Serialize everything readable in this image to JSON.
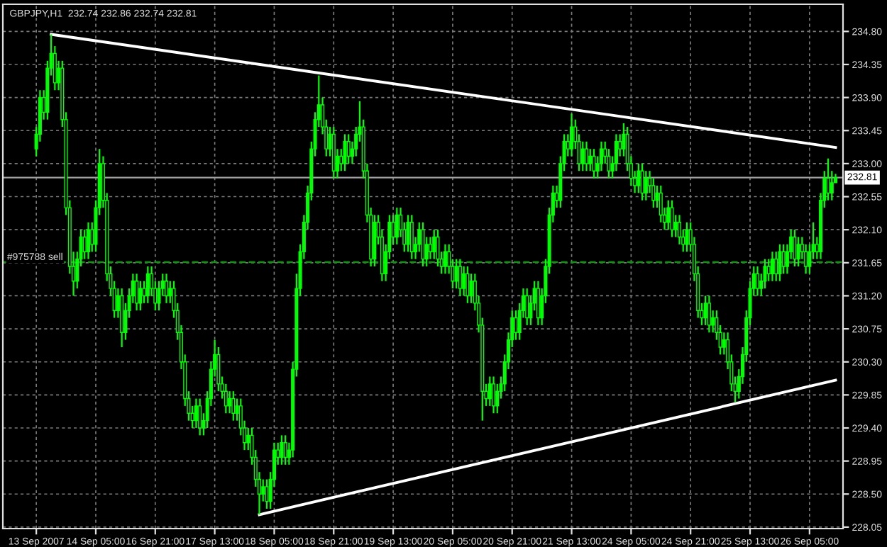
{
  "chart_data": {
    "type": "candlestick",
    "title": "GBPJPY,H1  232.74 232.86 232.74 232.81",
    "categories": [
      "13 Sep 2007",
      null,
      null,
      null,
      null,
      null,
      null,
      null,
      null,
      null,
      null,
      null,
      null,
      null,
      null,
      null,
      "14 Sep 05:00",
      null,
      null,
      null,
      null,
      null,
      null,
      null,
      null,
      null,
      null,
      null,
      null,
      null,
      null,
      null,
      "16 Sep 21:00",
      null,
      null,
      null,
      null,
      null,
      null,
      null,
      null,
      null,
      null,
      null,
      null,
      null,
      null,
      null,
      "17 Sep 13:00",
      null,
      null,
      null,
      null,
      null,
      null,
      null,
      null,
      null,
      null,
      null,
      null,
      null,
      null,
      null,
      "18 Sep 05:00",
      null,
      null,
      null,
      null,
      null,
      null,
      null,
      null,
      null,
      null,
      null,
      null,
      null,
      null,
      null,
      "18 Sep 21:00",
      null,
      null,
      null,
      null,
      null,
      null,
      null,
      null,
      null,
      null,
      null,
      null,
      null,
      null,
      null,
      "19 Sep 13:00",
      null,
      null,
      null,
      null,
      null,
      null,
      null,
      null,
      null,
      null,
      null,
      null,
      null,
      null,
      null,
      "20 Sep 05:00",
      null,
      null,
      null,
      null,
      null,
      null,
      null,
      null,
      null,
      null,
      null,
      null,
      null,
      null,
      null,
      "20 Sep 21:00",
      null,
      null,
      null,
      null,
      null,
      null,
      null,
      null,
      null,
      null,
      null,
      null,
      null,
      null,
      null,
      "21 Sep 13:00",
      null,
      null,
      null,
      null,
      null,
      null,
      null,
      null,
      null,
      null,
      null,
      null,
      null,
      null,
      null,
      "24 Sep 05:00",
      null,
      null,
      null,
      null,
      null,
      null,
      null,
      null,
      null,
      null,
      null,
      null,
      null,
      null,
      null,
      "24 Sep 21:00",
      null,
      null,
      null,
      null,
      null,
      null,
      null,
      null,
      null,
      null,
      null,
      null,
      null,
      null,
      null,
      "25 Sep 13:00",
      null,
      null,
      null,
      null,
      null,
      null,
      null,
      null,
      null,
      null,
      null,
      null,
      null,
      null,
      null,
      "26 Sep 05:00",
      null,
      null,
      null,
      null,
      null,
      null,
      null
    ],
    "color": "#00ff00",
    "ohlc": [
      [
        233.2,
        233.5,
        233.1,
        233.4
      ],
      [
        233.4,
        234.0,
        233.3,
        233.9
      ],
      [
        233.9,
        234.0,
        233.6,
        233.7
      ],
      [
        233.7,
        234.4,
        233.6,
        234.3
      ],
      [
        234.3,
        234.76,
        234.2,
        234.5
      ],
      [
        234.5,
        234.6,
        234.0,
        234.1
      ],
      [
        234.1,
        234.4,
        234.0,
        234.3
      ],
      [
        234.3,
        234.4,
        233.5,
        233.6
      ],
      [
        233.6,
        233.7,
        232.3,
        232.4
      ],
      [
        232.4,
        232.5,
        231.5,
        231.6
      ],
      [
        231.6,
        231.8,
        231.2,
        231.4
      ],
      [
        231.4,
        231.8,
        231.3,
        231.7
      ],
      [
        231.7,
        232.1,
        231.6,
        232.0
      ],
      [
        232.0,
        232.1,
        231.7,
        231.8
      ],
      [
        231.8,
        232.2,
        231.7,
        232.1
      ],
      [
        232.1,
        232.2,
        231.8,
        231.9
      ],
      [
        231.9,
        232.5,
        231.8,
        232.4
      ],
      [
        232.4,
        233.2,
        232.3,
        233.0
      ],
      [
        233.0,
        233.1,
        232.4,
        232.5
      ],
      [
        232.5,
        232.6,
        231.4,
        231.5
      ],
      [
        231.5,
        231.6,
        231.2,
        231.3
      ],
      [
        231.3,
        231.4,
        230.9,
        231.0
      ],
      [
        231.0,
        231.3,
        230.9,
        231.2
      ],
      [
        231.2,
        231.3,
        230.5,
        230.7
      ],
      [
        230.7,
        231.1,
        230.6,
        231.0
      ],
      [
        231.0,
        231.3,
        230.9,
        231.2
      ],
      [
        231.2,
        231.5,
        231.1,
        231.4
      ],
      [
        231.4,
        231.5,
        231.0,
        231.1
      ],
      [
        231.1,
        231.4,
        231.0,
        231.3
      ],
      [
        231.3,
        231.4,
        231.1,
        231.2
      ],
      [
        231.2,
        231.6,
        231.1,
        231.5
      ],
      [
        231.5,
        231.6,
        231.2,
        231.3
      ],
      [
        231.3,
        231.4,
        231.0,
        231.1
      ],
      [
        231.1,
        231.4,
        231.0,
        231.3
      ],
      [
        231.3,
        231.5,
        231.2,
        231.4
      ],
      [
        231.4,
        231.5,
        231.1,
        231.2
      ],
      [
        231.2,
        231.4,
        231.1,
        231.3
      ],
      [
        231.3,
        231.4,
        230.9,
        231.0
      ],
      [
        231.0,
        231.1,
        230.6,
        230.7
      ],
      [
        230.7,
        230.8,
        230.2,
        230.3
      ],
      [
        230.3,
        230.4,
        229.7,
        229.8
      ],
      [
        229.8,
        229.9,
        229.5,
        229.6
      ],
      [
        229.6,
        229.7,
        229.4,
        229.5
      ],
      [
        229.5,
        229.8,
        229.4,
        229.7
      ],
      [
        229.7,
        229.8,
        229.3,
        229.4
      ],
      [
        229.4,
        229.6,
        229.3,
        229.5
      ],
      [
        229.5,
        229.9,
        229.4,
        229.8
      ],
      [
        229.8,
        230.3,
        229.7,
        230.2
      ],
      [
        230.2,
        230.6,
        230.1,
        230.4
      ],
      [
        230.4,
        230.5,
        229.9,
        230.0
      ],
      [
        230.0,
        230.1,
        229.8,
        229.9
      ],
      [
        229.9,
        230.0,
        229.6,
        229.7
      ],
      [
        229.7,
        229.9,
        229.6,
        229.8
      ],
      [
        229.8,
        229.9,
        229.5,
        229.6
      ],
      [
        229.6,
        229.8,
        229.5,
        229.7
      ],
      [
        229.7,
        229.8,
        229.3,
        229.4
      ],
      [
        229.4,
        229.5,
        229.1,
        229.2
      ],
      [
        229.2,
        229.4,
        229.1,
        229.3
      ],
      [
        229.3,
        229.4,
        228.9,
        229.0
      ],
      [
        229.0,
        229.1,
        228.6,
        228.7
      ],
      [
        228.7,
        228.8,
        228.22,
        228.5
      ],
      [
        228.5,
        228.7,
        228.4,
        228.6
      ],
      [
        228.6,
        228.7,
        228.3,
        228.4
      ],
      [
        228.4,
        228.8,
        228.3,
        228.7
      ],
      [
        228.7,
        229.2,
        228.6,
        229.1
      ],
      [
        229.1,
        229.2,
        228.9,
        229.0
      ],
      [
        229.0,
        229.3,
        228.9,
        229.2
      ],
      [
        229.2,
        229.3,
        228.9,
        229.0
      ],
      [
        229.0,
        229.2,
        228.9,
        229.1
      ],
      [
        229.1,
        230.3,
        229.0,
        230.2
      ],
      [
        230.2,
        231.5,
        230.1,
        231.3
      ],
      [
        231.3,
        231.9,
        231.2,
        231.8
      ],
      [
        231.8,
        232.3,
        231.7,
        232.2
      ],
      [
        232.2,
        232.7,
        232.1,
        232.6
      ],
      [
        232.6,
        233.3,
        232.5,
        233.2
      ],
      [
        233.2,
        233.7,
        233.1,
        233.6
      ],
      [
        233.6,
        234.2,
        233.5,
        233.8
      ],
      [
        233.8,
        233.9,
        233.4,
        233.5
      ],
      [
        233.5,
        233.6,
        233.1,
        233.2
      ],
      [
        233.2,
        233.5,
        233.1,
        233.4
      ],
      [
        233.4,
        233.5,
        232.8,
        232.9
      ],
      [
        232.9,
        233.2,
        232.8,
        233.1
      ],
      [
        233.1,
        233.2,
        232.9,
        233.0
      ],
      [
        233.0,
        233.4,
        232.9,
        233.3
      ],
      [
        233.3,
        233.4,
        233.0,
        233.1
      ],
      [
        233.1,
        233.3,
        233.0,
        233.2
      ],
      [
        233.2,
        233.5,
        233.1,
        233.4
      ],
      [
        233.4,
        233.85,
        233.3,
        233.5
      ],
      [
        233.5,
        233.6,
        232.8,
        232.9
      ],
      [
        232.9,
        233.0,
        232.2,
        232.3
      ],
      [
        232.3,
        232.4,
        231.6,
        231.7
      ],
      [
        231.7,
        232.3,
        231.6,
        232.2
      ],
      [
        232.2,
        232.3,
        231.9,
        232.0
      ],
      [
        232.0,
        232.1,
        231.4,
        231.5
      ],
      [
        231.5,
        231.9,
        231.4,
        231.8
      ],
      [
        231.8,
        232.3,
        231.7,
        232.2
      ],
      [
        232.2,
        232.3,
        231.9,
        232.0
      ],
      [
        232.0,
        232.4,
        231.9,
        232.3
      ],
      [
        232.3,
        232.4,
        232.0,
        232.1
      ],
      [
        232.1,
        232.2,
        231.8,
        231.9
      ],
      [
        231.9,
        232.3,
        231.8,
        232.2
      ],
      [
        232.2,
        232.3,
        231.7,
        231.8
      ],
      [
        231.8,
        232.0,
        231.7,
        231.9
      ],
      [
        231.9,
        232.2,
        231.8,
        232.1
      ],
      [
        232.1,
        232.2,
        231.6,
        231.7
      ],
      [
        231.7,
        232.0,
        231.6,
        231.9
      ],
      [
        231.9,
        232.0,
        231.7,
        231.8
      ],
      [
        231.8,
        232.1,
        231.7,
        232.0
      ],
      [
        232.0,
        232.1,
        231.6,
        231.7
      ],
      [
        231.7,
        231.8,
        231.5,
        231.6
      ],
      [
        231.6,
        231.9,
        231.5,
        231.8
      ],
      [
        231.8,
        231.9,
        231.5,
        231.6
      ],
      [
        231.6,
        231.7,
        231.3,
        231.4
      ],
      [
        231.4,
        231.7,
        231.3,
        231.6
      ],
      [
        231.6,
        231.7,
        231.2,
        231.3
      ],
      [
        231.3,
        231.6,
        231.2,
        231.5
      ],
      [
        231.5,
        231.6,
        231.1,
        231.2
      ],
      [
        231.2,
        231.5,
        231.1,
        231.4
      ],
      [
        231.4,
        231.5,
        231.0,
        231.1
      ],
      [
        231.1,
        231.2,
        230.7,
        230.8
      ],
      [
        230.8,
        230.9,
        229.5,
        229.9
      ],
      [
        229.9,
        230.0,
        229.7,
        229.8
      ],
      [
        229.8,
        230.1,
        229.7,
        230.0
      ],
      [
        230.0,
        230.1,
        229.6,
        229.7
      ],
      [
        229.7,
        230.0,
        229.6,
        229.9
      ],
      [
        229.9,
        230.1,
        229.8,
        230.0
      ],
      [
        230.0,
        230.4,
        229.9,
        230.3
      ],
      [
        230.3,
        230.7,
        230.2,
        230.6
      ],
      [
        230.6,
        231.0,
        230.5,
        230.9
      ],
      [
        230.9,
        231.0,
        230.6,
        230.7
      ],
      [
        230.7,
        231.1,
        230.6,
        231.0
      ],
      [
        231.0,
        231.3,
        230.9,
        231.2
      ],
      [
        231.2,
        231.3,
        230.8,
        230.9
      ],
      [
        230.9,
        231.2,
        230.8,
        231.1
      ],
      [
        231.1,
        231.4,
        231.0,
        231.3
      ],
      [
        231.3,
        231.4,
        230.8,
        230.9
      ],
      [
        230.9,
        231.3,
        230.8,
        231.2
      ],
      [
        231.2,
        231.7,
        231.1,
        231.6
      ],
      [
        231.6,
        232.4,
        231.5,
        232.3
      ],
      [
        232.3,
        232.7,
        232.2,
        232.6
      ],
      [
        232.6,
        232.7,
        232.4,
        232.5
      ],
      [
        232.5,
        233.1,
        232.4,
        233.0
      ],
      [
        233.0,
        233.4,
        232.9,
        233.3
      ],
      [
        233.3,
        233.4,
        233.1,
        233.2
      ],
      [
        233.2,
        233.68,
        233.1,
        233.5
      ],
      [
        233.5,
        233.6,
        233.2,
        233.3
      ],
      [
        233.3,
        233.4,
        232.9,
        233.0
      ],
      [
        233.0,
        233.3,
        232.9,
        233.2
      ],
      [
        233.2,
        233.3,
        232.9,
        233.0
      ],
      [
        233.0,
        233.2,
        232.9,
        233.1
      ],
      [
        233.1,
        233.2,
        232.8,
        232.9
      ],
      [
        232.9,
        233.1,
        232.8,
        233.0
      ],
      [
        233.0,
        233.3,
        232.9,
        233.2
      ],
      [
        233.2,
        233.3,
        233.0,
        233.1
      ],
      [
        233.1,
        233.2,
        232.8,
        232.9
      ],
      [
        232.9,
        233.1,
        232.8,
        233.0
      ],
      [
        233.0,
        233.4,
        232.9,
        233.3
      ],
      [
        233.3,
        233.4,
        233.1,
        233.2
      ],
      [
        233.2,
        233.55,
        233.1,
        233.4
      ],
      [
        233.4,
        233.5,
        232.9,
        233.0
      ],
      [
        233.0,
        233.1,
        232.7,
        232.8
      ],
      [
        232.8,
        232.9,
        232.6,
        232.7
      ],
      [
        232.7,
        233.0,
        232.6,
        232.9
      ],
      [
        232.9,
        233.0,
        232.5,
        232.6
      ],
      [
        232.6,
        232.9,
        232.5,
        232.8
      ],
      [
        232.8,
        232.9,
        232.6,
        232.7
      ],
      [
        232.7,
        232.8,
        232.4,
        232.5
      ],
      [
        232.5,
        232.7,
        232.4,
        232.6
      ],
      [
        232.6,
        232.7,
        232.2,
        232.3
      ],
      [
        232.3,
        232.4,
        232.1,
        232.2
      ],
      [
        232.2,
        232.5,
        232.1,
        232.4
      ],
      [
        232.4,
        232.5,
        232.0,
        232.1
      ],
      [
        232.1,
        232.3,
        232.0,
        232.2
      ],
      [
        232.2,
        232.3,
        231.9,
        232.0
      ],
      [
        232.0,
        232.1,
        231.8,
        231.9
      ],
      [
        231.9,
        232.2,
        231.8,
        232.1
      ],
      [
        232.1,
        232.2,
        231.8,
        231.9
      ],
      [
        231.9,
        232.0,
        231.4,
        231.5
      ],
      [
        231.5,
        231.6,
        230.9,
        231.0
      ],
      [
        231.0,
        231.1,
        230.8,
        230.9
      ],
      [
        230.9,
        231.2,
        230.8,
        231.1
      ],
      [
        231.1,
        231.2,
        230.7,
        230.8
      ],
      [
        230.8,
        231.0,
        230.7,
        230.9
      ],
      [
        230.9,
        231.0,
        230.6,
        230.7
      ],
      [
        230.7,
        230.8,
        230.4,
        230.5
      ],
      [
        230.5,
        230.7,
        230.4,
        230.6
      ],
      [
        230.6,
        230.7,
        230.2,
        230.3
      ],
      [
        230.3,
        230.4,
        229.9,
        230.0
      ],
      [
        230.0,
        230.1,
        229.75,
        229.9
      ],
      [
        229.9,
        230.2,
        229.8,
        230.1
      ],
      [
        230.1,
        230.5,
        230.0,
        230.4
      ],
      [
        230.4,
        231.0,
        230.3,
        230.9
      ],
      [
        230.9,
        231.4,
        230.8,
        231.3
      ],
      [
        231.3,
        231.6,
        231.2,
        231.5
      ],
      [
        231.5,
        231.6,
        231.2,
        231.3
      ],
      [
        231.3,
        231.5,
        231.2,
        231.4
      ],
      [
        231.4,
        231.7,
        231.3,
        231.6
      ],
      [
        231.6,
        231.7,
        231.4,
        231.5
      ],
      [
        231.5,
        231.8,
        231.4,
        231.7
      ],
      [
        231.7,
        231.8,
        231.4,
        231.5
      ],
      [
        231.5,
        231.9,
        231.4,
        231.8
      ],
      [
        231.8,
        231.9,
        231.5,
        231.6
      ],
      [
        231.6,
        231.9,
        231.5,
        231.8
      ],
      [
        231.8,
        232.1,
        231.7,
        232.0
      ],
      [
        232.0,
        232.1,
        231.6,
        231.7
      ],
      [
        231.7,
        232.0,
        231.6,
        231.9
      ],
      [
        231.9,
        232.0,
        231.7,
        231.8
      ],
      [
        231.8,
        231.9,
        231.5,
        231.6
      ],
      [
        231.6,
        231.9,
        231.5,
        231.8
      ],
      [
        231.8,
        232.2,
        231.7,
        231.9
      ],
      [
        231.9,
        232.0,
        231.7,
        231.8
      ],
      [
        231.8,
        232.6,
        231.7,
        232.5
      ],
      [
        232.5,
        232.9,
        232.4,
        232.8
      ],
      [
        232.8,
        233.07,
        232.5,
        232.6
      ],
      [
        232.6,
        232.9,
        232.5,
        232.74
      ],
      [
        232.74,
        232.86,
        232.74,
        232.81
      ]
    ],
    "series": [
      {
        "type": "line",
        "color": "#ffffff",
        "values": [
          null,
          null,
          null,
          null,
          234.76,
          null,
          null,
          null,
          null,
          null,
          null,
          null,
          null,
          null,
          null,
          null,
          null,
          null,
          null,
          null,
          null,
          null,
          null,
          null,
          null,
          null,
          null,
          null,
          null,
          null,
          null,
          null,
          null,
          null,
          null,
          null,
          null,
          null,
          null,
          null,
          null,
          null,
          null,
          null,
          null,
          null,
          null,
          null,
          null,
          null,
          null,
          null,
          null,
          null,
          null,
          null,
          null,
          null,
          null,
          null,
          null,
          null,
          null,
          null,
          null,
          null,
          null,
          null,
          null,
          null,
          null,
          null,
          null,
          null,
          null,
          null,
          null,
          null,
          null,
          null,
          null,
          null,
          null,
          null,
          null,
          null,
          null,
          null,
          null,
          null,
          null,
          null,
          null,
          null,
          null,
          null,
          null,
          null,
          null,
          null,
          null,
          null,
          null,
          null,
          null,
          null,
          null,
          null,
          null,
          null,
          null,
          null,
          null,
          null,
          null,
          null,
          null,
          null,
          null,
          null,
          null,
          null,
          null,
          null,
          null,
          null,
          null,
          null,
          null,
          null,
          null,
          null,
          null,
          null,
          null,
          null,
          null,
          null,
          null,
          null,
          null,
          null,
          null,
          null,
          null,
          null,
          null,
          null,
          null,
          null,
          null,
          null,
          null,
          null,
          null,
          null,
          null,
          null,
          null,
          null,
          null,
          null,
          null,
          null,
          null,
          null,
          null,
          null,
          null,
          null,
          null,
          null,
          null,
          null,
          null,
          null,
          null,
          null,
          null,
          null,
          null,
          null,
          null,
          null,
          null,
          null,
          null,
          null,
          null,
          null,
          null,
          null,
          null,
          null,
          null,
          null,
          null,
          null,
          null,
          null,
          null,
          null,
          null,
          null,
          null,
          null,
          null,
          null,
          null,
          null,
          null,
          null,
          null,
          null,
          null,
          233.22
        ]
      },
      {
        "type": "line",
        "color": "#ffffff",
        "values": [
          null,
          null,
          null,
          null,
          null,
          null,
          null,
          null,
          null,
          null,
          null,
          null,
          null,
          null,
          null,
          null,
          null,
          null,
          null,
          null,
          null,
          null,
          null,
          null,
          null,
          null,
          null,
          null,
          null,
          null,
          null,
          null,
          null,
          null,
          null,
          null,
          null,
          null,
          null,
          null,
          null,
          null,
          null,
          null,
          null,
          null,
          null,
          null,
          null,
          null,
          null,
          null,
          null,
          null,
          null,
          null,
          null,
          null,
          null,
          null,
          228.22,
          null,
          null,
          null,
          null,
          null,
          null,
          null,
          null,
          null,
          null,
          null,
          null,
          null,
          null,
          null,
          null,
          null,
          null,
          null,
          null,
          null,
          null,
          null,
          null,
          null,
          null,
          null,
          null,
          null,
          null,
          null,
          null,
          null,
          null,
          null,
          null,
          null,
          null,
          null,
          null,
          null,
          null,
          null,
          null,
          null,
          null,
          null,
          null,
          null,
          null,
          null,
          null,
          null,
          null,
          null,
          null,
          null,
          null,
          null,
          null,
          null,
          null,
          null,
          null,
          null,
          null,
          null,
          null,
          null,
          null,
          null,
          null,
          null,
          null,
          null,
          null,
          null,
          null,
          null,
          null,
          null,
          null,
          null,
          null,
          null,
          null,
          null,
          null,
          null,
          null,
          null,
          null,
          null,
          null,
          null,
          null,
          null,
          null,
          null,
          null,
          null,
          null,
          null,
          null,
          null,
          null,
          null,
          null,
          null,
          null,
          null,
          null,
          null,
          null,
          null,
          null,
          null,
          null,
          null,
          null,
          null,
          null,
          null,
          null,
          null,
          null,
          null,
          null,
          null,
          null,
          null,
          null,
          null,
          null,
          null,
          null,
          null,
          null,
          null,
          null,
          null,
          null,
          null,
          null,
          null,
          null,
          null,
          null,
          null,
          null,
          null,
          null,
          null,
          null,
          230.05
        ]
      }
    ],
    "ref_lines": [
      {
        "axis": "y",
        "value": 232.81,
        "label": "232.81",
        "color": "#a0a0a0",
        "line_style": "solid"
      },
      {
        "axis": "y",
        "value": 231.66,
        "label": "#975788 sell",
        "color": "#00a000",
        "line_style": "dashed"
      }
    ],
    "ylim": [
      228.03,
      235.17
    ],
    "yticks": [
      {
        "value": 234.8,
        "label": "234.80"
      },
      234.35,
      {
        "value": 233.9,
        "label": "233.90"
      },
      233.45,
      {
        "value": 233.0,
        "label": "233.00"
      },
      232.55,
      {
        "value": 232.1,
        "label": "232.10"
      },
      231.65,
      {
        "value": 231.2,
        "label": "231.20"
      },
      230.75,
      {
        "value": 230.3,
        "label": "230.30"
      },
      229.85,
      {
        "value": 229.4,
        "label": "229.40"
      },
      228.95,
      {
        "value": 228.5,
        "label": "228.50"
      },
      228.05
    ],
    "grid": true
  }
}
